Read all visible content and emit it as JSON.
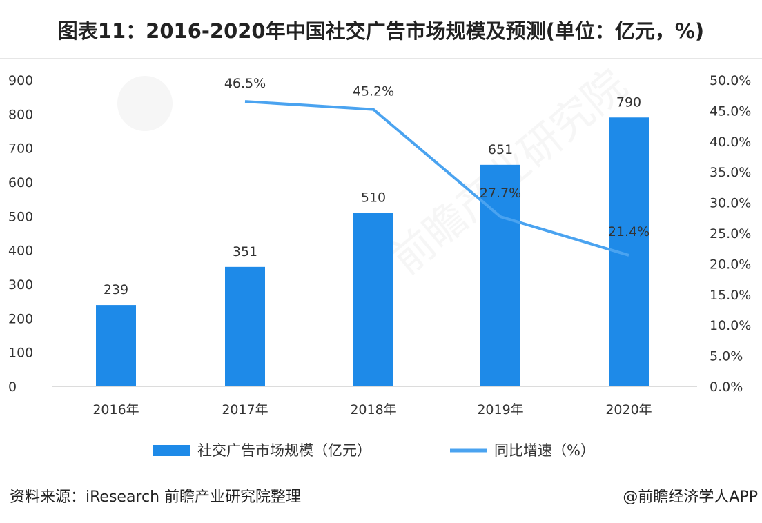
{
  "title": "图表11：2016-2020年中国社交广告市场规模及预测(单位：亿元，%)",
  "source": "资料来源：iResearch 前瞻产业研究院整理",
  "credit": "@前瞻经济学人APP",
  "watermark": "前瞻产业研究院",
  "chart_data": {
    "type": "bar+line",
    "categories": [
      "2016年",
      "2017年",
      "2018年",
      "2019年",
      "2020年"
    ],
    "series": [
      {
        "name": "社交广告市场规模（亿元）",
        "type": "bar",
        "axis": "left",
        "values": [
          239,
          351,
          510,
          651,
          790
        ],
        "color": "#1e8ae8"
      },
      {
        "name": "同比增速（%）",
        "type": "line",
        "axis": "right",
        "values": [
          null,
          46.5,
          45.2,
          27.7,
          21.4
        ],
        "labels": [
          "",
          "46.5%",
          "45.2%",
          "27.7%",
          "21.4%"
        ],
        "color": "#4aa3f0"
      }
    ],
    "left_axis": {
      "ylim": [
        0,
        900
      ],
      "ticks": [
        "0",
        "100",
        "200",
        "300",
        "400",
        "500",
        "600",
        "700",
        "800",
        "900"
      ]
    },
    "right_axis": {
      "ylim": [
        0,
        50
      ],
      "ticks": [
        "0.0%",
        "5.0%",
        "10.0%",
        "15.0%",
        "20.0%",
        "25.0%",
        "30.0%",
        "35.0%",
        "40.0%",
        "45.0%",
        "50.0%"
      ]
    },
    "grid": false,
    "legend": "bottom"
  }
}
